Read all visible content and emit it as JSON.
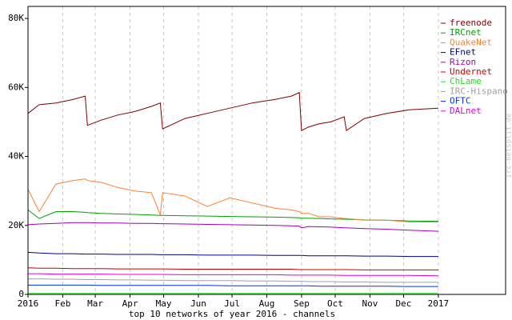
{
  "chart_data": {
    "type": "line",
    "title": "top 10 networks of year 2016 - channels",
    "watermark": "irc-netsplit.de",
    "legend": "top-right",
    "grid": "x",
    "xlim": [
      0,
      426
    ],
    "xticks": [
      {
        "value": 0,
        "label": "2016"
      },
      {
        "value": 31,
        "label": "Feb"
      },
      {
        "value": 60,
        "label": "Mar"
      },
      {
        "value": 91,
        "label": "Apr"
      },
      {
        "value": 121,
        "label": "May"
      },
      {
        "value": 152,
        "label": "Jun"
      },
      {
        "value": 182,
        "label": "Jul"
      },
      {
        "value": 213,
        "label": "Aug"
      },
      {
        "value": 244,
        "label": "Sep"
      },
      {
        "value": 274,
        "label": "Oct"
      },
      {
        "value": 305,
        "label": "Nov"
      },
      {
        "value": 335,
        "label": "Dec"
      },
      {
        "value": 366,
        "label": "2017"
      }
    ],
    "ylim": [
      0,
      83500
    ],
    "yticks": [
      0,
      {
        "value": 20000,
        "label": "20K"
      },
      {
        "value": 40000,
        "label": "40K"
      },
      {
        "value": 60000,
        "label": "60K"
      },
      {
        "value": 80000,
        "label": "80K"
      }
    ],
    "x": [
      0,
      10,
      25,
      40,
      51,
      53,
      65,
      80,
      95,
      110,
      118,
      120,
      140,
      160,
      180,
      200,
      220,
      235,
      242,
      244,
      250,
      260,
      270,
      282,
      284,
      300,
      320,
      340,
      366
    ],
    "series": [
      {
        "name": "freenode",
        "color": "#800000",
        "values": [
          52500,
          55000,
          55500,
          56500,
          57500,
          49000,
          50500,
          52000,
          53000,
          54500,
          55500,
          48000,
          51000,
          52500,
          54000,
          55500,
          56500,
          57500,
          58500,
          47500,
          48500,
          49500,
          50000,
          51500,
          47500,
          51000,
          52500,
          53500,
          54000
        ]
      },
      {
        "name": "IRCnet",
        "color": "#00a000",
        "values": [
          24500,
          22000,
          24000,
          24000,
          23800,
          23700,
          23500,
          23300,
          23200,
          23000,
          22900,
          22900,
          22800,
          22700,
          22600,
          22500,
          22400,
          22300,
          22200,
          22100,
          22100,
          22000,
          21900,
          21800,
          21800,
          21600,
          21500,
          21300,
          21200
        ]
      },
      {
        "name": "QuakeNet",
        "color": "#ff8030",
        "values": [
          30500,
          24000,
          32000,
          33000,
          33500,
          33000,
          32500,
          31000,
          30000,
          29500,
          23000,
          29500,
          28500,
          25500,
          28000,
          26500,
          25000,
          24500,
          24000,
          23500,
          23500,
          22500,
          22500,
          22000,
          22000,
          21500,
          21500,
          21000,
          21000
        ]
      },
      {
        "name": "EFnet",
        "color": "#000090",
        "values": [
          12200,
          12000,
          11800,
          11800,
          11700,
          11700,
          11700,
          11600,
          11600,
          11600,
          11500,
          11500,
          11500,
          11400,
          11400,
          11400,
          11300,
          11300,
          11300,
          11300,
          11200,
          11200,
          11200,
          11200,
          11200,
          11100,
          11100,
          11000,
          11000
        ]
      },
      {
        "name": "Rizon",
        "color": "#a000c0",
        "values": [
          20200,
          20400,
          20600,
          20800,
          20800,
          20800,
          20700,
          20700,
          20600,
          20600,
          20500,
          20500,
          20400,
          20300,
          20200,
          20100,
          20000,
          19900,
          19800,
          19300,
          19700,
          19600,
          19500,
          19300,
          19300,
          19100,
          18900,
          18600,
          18300
        ]
      },
      {
        "name": "Undernet",
        "color": "#d00000",
        "values": [
          7700,
          7600,
          7600,
          7500,
          7500,
          7500,
          7500,
          7400,
          7400,
          7400,
          7400,
          7400,
          7300,
          7300,
          7300,
          7300,
          7300,
          7300,
          7200,
          7200,
          7200,
          7200,
          7200,
          7200,
          7200,
          7100,
          7100,
          7100,
          7100
        ]
      },
      {
        "name": "ChLame",
        "color": "#20e020",
        "values": [
          300,
          300,
          300,
          300,
          300,
          300,
          300,
          300,
          300,
          300,
          300,
          300,
          300,
          300,
          300,
          300,
          300,
          300,
          300,
          300,
          300,
          300,
          300,
          300,
          300,
          300,
          300,
          300,
          300
        ]
      },
      {
        "name": "IRC-Hispano",
        "color": "#a0a0a0",
        "values": [
          4500,
          4500,
          4400,
          4400,
          4300,
          4300,
          4300,
          4200,
          4200,
          4100,
          4100,
          4100,
          4000,
          4000,
          4000,
          3900,
          3900,
          3800,
          3800,
          3800,
          3700,
          3700,
          3700,
          3600,
          3600,
          3600,
          3500,
          3500,
          3500
        ]
      },
      {
        "name": "OFTC",
        "color": "#0030ff",
        "values": [
          2700,
          2700,
          2700,
          2700,
          2700,
          2700,
          2600,
          2600,
          2600,
          2600,
          2600,
          2600,
          2600,
          2600,
          2500,
          2500,
          2500,
          2500,
          2500,
          2500,
          2500,
          2400,
          2400,
          2400,
          2400,
          2400,
          2400,
          2300,
          2300
        ]
      },
      {
        "name": "DALnet",
        "color": "#e000e0",
        "values": [
          6000,
          6000,
          5900,
          5900,
          5900,
          5900,
          5900,
          5800,
          5800,
          5800,
          5800,
          5800,
          5700,
          5700,
          5700,
          5700,
          5700,
          5600,
          5600,
          5600,
          5600,
          5600,
          5600,
          5500,
          5500,
          5500,
          5500,
          5500,
          5400
        ]
      }
    ]
  }
}
